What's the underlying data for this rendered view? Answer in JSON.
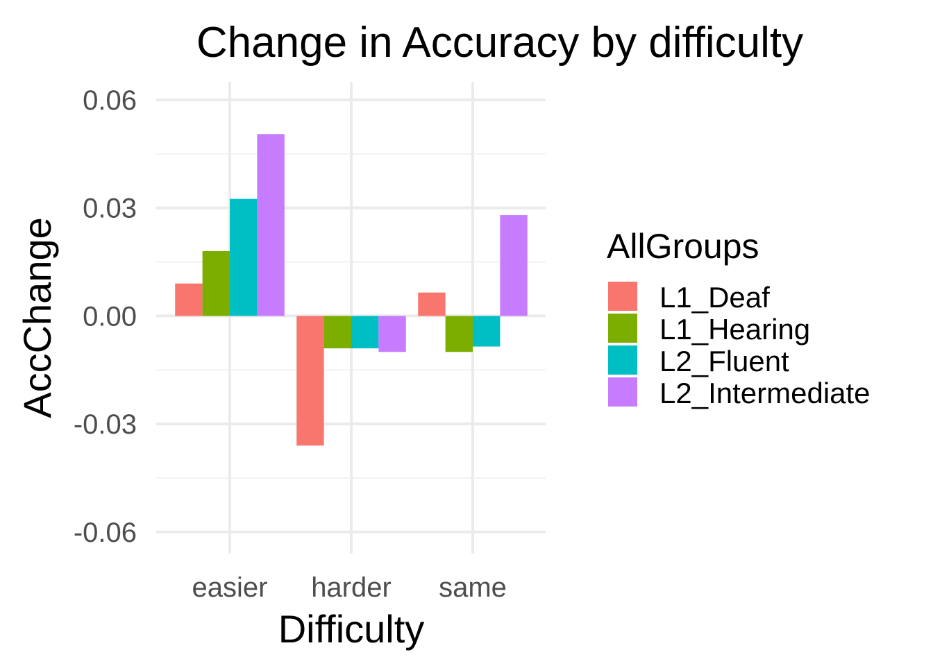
{
  "chart_data": {
    "type": "bar",
    "title": "Change in Accuracy by difficulty",
    "xlabel": "Difficulty",
    "ylabel": "AccChange",
    "categories": [
      "easier",
      "harder",
      "same"
    ],
    "ylim": [
      -0.066,
      0.065
    ],
    "yticks": [
      -0.06,
      -0.03,
      0.0,
      0.03,
      0.06
    ],
    "ytick_labels": [
      "-0.06",
      "-0.03",
      "0.00",
      "0.03",
      "0.06"
    ],
    "grid": true,
    "legend_title": "AllGroups",
    "legend_position": "right",
    "series": [
      {
        "name": "L1_Deaf",
        "color": "#F8766D",
        "values": [
          0.009,
          -0.036,
          0.0065
        ]
      },
      {
        "name": "L1_Hearing",
        "color": "#7CAE00",
        "values": [
          0.018,
          -0.009,
          -0.01
        ]
      },
      {
        "name": "L2_Fluent",
        "color": "#00BFC4",
        "values": [
          0.0325,
          -0.009,
          -0.0085
        ]
      },
      {
        "name": "L2_Intermediate",
        "color": "#C77CFF",
        "values": [
          0.0505,
          -0.01,
          0.028
        ]
      }
    ]
  }
}
